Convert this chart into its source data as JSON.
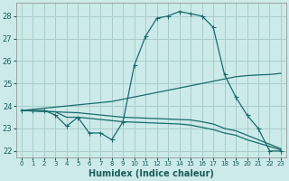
{
  "xlabel": "Humidex (Indice chaleur)",
  "ylabel": "",
  "xlim": [
    -0.5,
    23.5
  ],
  "ylim": [
    21.7,
    28.6
  ],
  "yticks": [
    22,
    23,
    24,
    25,
    26,
    27,
    28
  ],
  "xticks": [
    0,
    1,
    2,
    3,
    4,
    5,
    6,
    7,
    8,
    9,
    10,
    11,
    12,
    13,
    14,
    15,
    16,
    17,
    18,
    19,
    20,
    21,
    22,
    23
  ],
  "xtick_labels": [
    "0",
    "1",
    "2",
    "3",
    "4",
    "5",
    "6",
    "7",
    "8",
    "9",
    "10",
    "11",
    "12",
    "13",
    "14",
    "15",
    "16",
    "17",
    "18",
    "19",
    "20",
    "21",
    "22",
    "23"
  ],
  "background_color": "#cceaea",
  "grid_color": "#aacccc",
  "line_color": "#1a6b6b",
  "line1_x": [
    0,
    1,
    2,
    3,
    4,
    5,
    6,
    7,
    8,
    9,
    10,
    11,
    12,
    13,
    14,
    15,
    16,
    17,
    18,
    19,
    20,
    21,
    22,
    23
  ],
  "line1_y": [
    23.8,
    23.8,
    23.8,
    23.6,
    23.1,
    23.5,
    22.8,
    22.8,
    22.5,
    23.3,
    25.8,
    27.1,
    27.9,
    28.0,
    28.2,
    28.1,
    28.0,
    27.5,
    25.4,
    24.4,
    23.6,
    23.0,
    22.0,
    22.0
  ],
  "line2_x": [
    0,
    1,
    2,
    3,
    4,
    5,
    6,
    7,
    8,
    9,
    10,
    11,
    12,
    13,
    14,
    15,
    16,
    17,
    18,
    19,
    20,
    21,
    22,
    23
  ],
  "line2_y": [
    23.8,
    23.85,
    23.9,
    23.95,
    24.0,
    24.05,
    24.1,
    24.15,
    24.2,
    24.3,
    24.4,
    24.5,
    24.6,
    24.7,
    24.8,
    24.9,
    25.0,
    25.1,
    25.2,
    25.3,
    25.35,
    25.38,
    25.4,
    25.45
  ],
  "line3_x": [
    0,
    1,
    2,
    3,
    4,
    5,
    6,
    7,
    8,
    9,
    10,
    11,
    12,
    13,
    14,
    15,
    16,
    17,
    18,
    19,
    20,
    21,
    22,
    23
  ],
  "line3_y": [
    23.8,
    23.78,
    23.76,
    23.74,
    23.72,
    23.7,
    23.65,
    23.6,
    23.55,
    23.5,
    23.48,
    23.46,
    23.44,
    23.42,
    23.4,
    23.38,
    23.3,
    23.2,
    23.0,
    22.9,
    22.7,
    22.5,
    22.3,
    22.1
  ],
  "line4_x": [
    0,
    1,
    2,
    3,
    4,
    5,
    6,
    7,
    8,
    9,
    10,
    11,
    12,
    13,
    14,
    15,
    16,
    17,
    18,
    19,
    20,
    21,
    22,
    23
  ],
  "line4_y": [
    23.8,
    23.78,
    23.76,
    23.74,
    23.5,
    23.5,
    23.45,
    23.4,
    23.35,
    23.3,
    23.28,
    23.26,
    23.24,
    23.22,
    23.2,
    23.15,
    23.05,
    22.95,
    22.8,
    22.7,
    22.5,
    22.35,
    22.2,
    22.05
  ]
}
